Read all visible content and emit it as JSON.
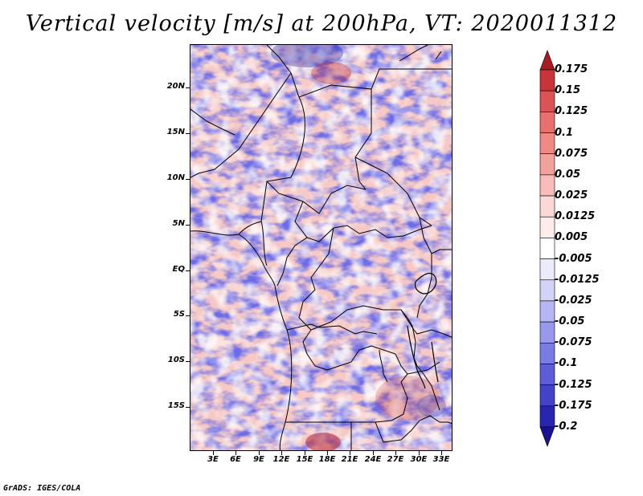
{
  "title": "Vertical velocity [m/s] at 200hPa, VT: 2020011312",
  "footer": "GrADS: IGES/COLA",
  "map": {
    "lat_labels": [
      "20N",
      "15N",
      "10N",
      "5N",
      "EQ",
      "5S",
      "10S",
      "15S"
    ],
    "lon_labels": [
      "3E",
      "6E",
      "9E",
      "12E",
      "15E",
      "18E",
      "21E",
      "24E",
      "27E",
      "30E",
      "33E"
    ]
  },
  "colorbar": {
    "labels": [
      "0.175",
      "0.15",
      "0.125",
      "0.1",
      "0.075",
      "0.05",
      "0.025",
      "0.0125",
      "0.005",
      "-0.005",
      "-0.0125",
      "-0.025",
      "-0.05",
      "-0.075",
      "-0.1",
      "-0.125",
      "-0.175",
      "-0.2"
    ],
    "colors": [
      "#a51c24",
      "#c8343a",
      "#dc5357",
      "#e8706f",
      "#ee8986",
      "#f3a19d",
      "#f8bdb8",
      "#fcd8d4",
      "#fdecea",
      "#ffffff",
      "#ecebfb",
      "#d3d3f8",
      "#b5b6f2",
      "#9898ec",
      "#7b7be4",
      "#5e5dd8",
      "#4342c8",
      "#2a25b0",
      "#1a1190"
    ]
  }
}
